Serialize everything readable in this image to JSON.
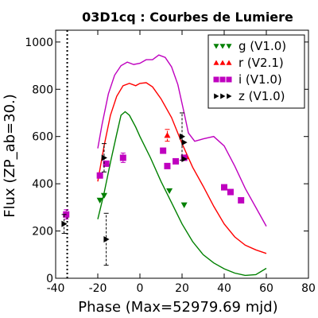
{
  "chart_data": {
    "type": "scatter",
    "title": "03D1cq : Courbes de Lumiere",
    "xlabel": "Phase (Max=52979.69 mjd)",
    "ylabel": "Flux (ZP_ab=30.)",
    "xlim": [
      -40,
      80
    ],
    "ylim": [
      0,
      1050
    ],
    "xticks": [
      "-40",
      "-20",
      "0",
      "20",
      "40",
      "60",
      "80"
    ],
    "yticks": [
      "0",
      "200",
      "400",
      "600",
      "800",
      "1000"
    ],
    "grid": false,
    "legend_placement": "top-right",
    "reference_line_x": -34.5,
    "series": [
      {
        "name": "g (V1.0)",
        "color": "#008000",
        "marker": "triangle-down",
        "points": [
          [
            -19,
            330,
            0
          ],
          [
            -17,
            350,
            0
          ],
          [
            14,
            370,
            0
          ],
          [
            21,
            310,
            0
          ]
        ],
        "curve": [
          [
            -20,
            250
          ],
          [
            -17,
            360
          ],
          [
            -14,
            490
          ],
          [
            -11,
            610
          ],
          [
            -9,
            690
          ],
          [
            -7,
            705
          ],
          [
            -5,
            690
          ],
          [
            -2,
            640
          ],
          [
            0,
            600
          ],
          [
            5,
            510
          ],
          [
            10,
            410
          ],
          [
            15,
            320
          ],
          [
            20,
            230
          ],
          [
            25,
            155
          ],
          [
            30,
            100
          ],
          [
            35,
            65
          ],
          [
            40,
            40
          ],
          [
            45,
            22
          ],
          [
            50,
            12
          ],
          [
            55,
            15
          ],
          [
            60,
            42
          ]
        ]
      },
      {
        "name": "r (V2.1)",
        "color": "#ff0000",
        "marker": "triangle-up",
        "points": [
          [
            13,
            605,
            25
          ],
          [
            22,
            515,
            0
          ]
        ],
        "curve": [
          [
            -20,
            410
          ],
          [
            -17,
            560
          ],
          [
            -14,
            690
          ],
          [
            -11,
            770
          ],
          [
            -8,
            815
          ],
          [
            -5,
            825
          ],
          [
            -2,
            815
          ],
          [
            0,
            825
          ],
          [
            3,
            828
          ],
          [
            6,
            810
          ],
          [
            10,
            760
          ],
          [
            15,
            680
          ],
          [
            20,
            570
          ],
          [
            25,
            470
          ],
          [
            30,
            390
          ],
          [
            35,
            305
          ],
          [
            40,
            230
          ],
          [
            45,
            175
          ],
          [
            50,
            140
          ],
          [
            55,
            120
          ],
          [
            60,
            105
          ]
        ]
      },
      {
        "name": "i (V1.0)",
        "color": "#bf00bf",
        "marker": "square",
        "points": [
          [
            -35,
            270,
            20
          ],
          [
            -19,
            435,
            0
          ],
          [
            -16,
            485,
            0
          ],
          [
            -8,
            510,
            20
          ],
          [
            11,
            540,
            0
          ],
          [
            13,
            475,
            0
          ],
          [
            17,
            495,
            0
          ],
          [
            21,
            510,
            0
          ],
          [
            40,
            385,
            0
          ],
          [
            43,
            365,
            0
          ],
          [
            48,
            330,
            0
          ]
        ],
        "curve": [
          [
            -20,
            550
          ],
          [
            -18,
            650
          ],
          [
            -15,
            780
          ],
          [
            -12,
            860
          ],
          [
            -9,
            900
          ],
          [
            -6,
            915
          ],
          [
            -3,
            905
          ],
          [
            0,
            910
          ],
          [
            3,
            925
          ],
          [
            6,
            925
          ],
          [
            9,
            945
          ],
          [
            12,
            935
          ],
          [
            15,
            895
          ],
          [
            18,
            820
          ],
          [
            21,
            700
          ],
          [
            23,
            615
          ],
          [
            26,
            580
          ],
          [
            30,
            590
          ],
          [
            35,
            600
          ],
          [
            40,
            560
          ],
          [
            45,
            475
          ],
          [
            50,
            380
          ],
          [
            55,
            300
          ],
          [
            60,
            220
          ]
        ]
      },
      {
        "name": "z (V1.0)",
        "color": "#000000",
        "marker": "triangle-right",
        "points": [
          [
            -36,
            230,
            40
          ],
          [
            -17,
            510,
            60
          ],
          [
            -16,
            165,
            110
          ],
          [
            20,
            600,
            100
          ],
          [
            21,
            575,
            0
          ],
          [
            21,
            505,
            0
          ]
        ],
        "curve": []
      }
    ]
  }
}
